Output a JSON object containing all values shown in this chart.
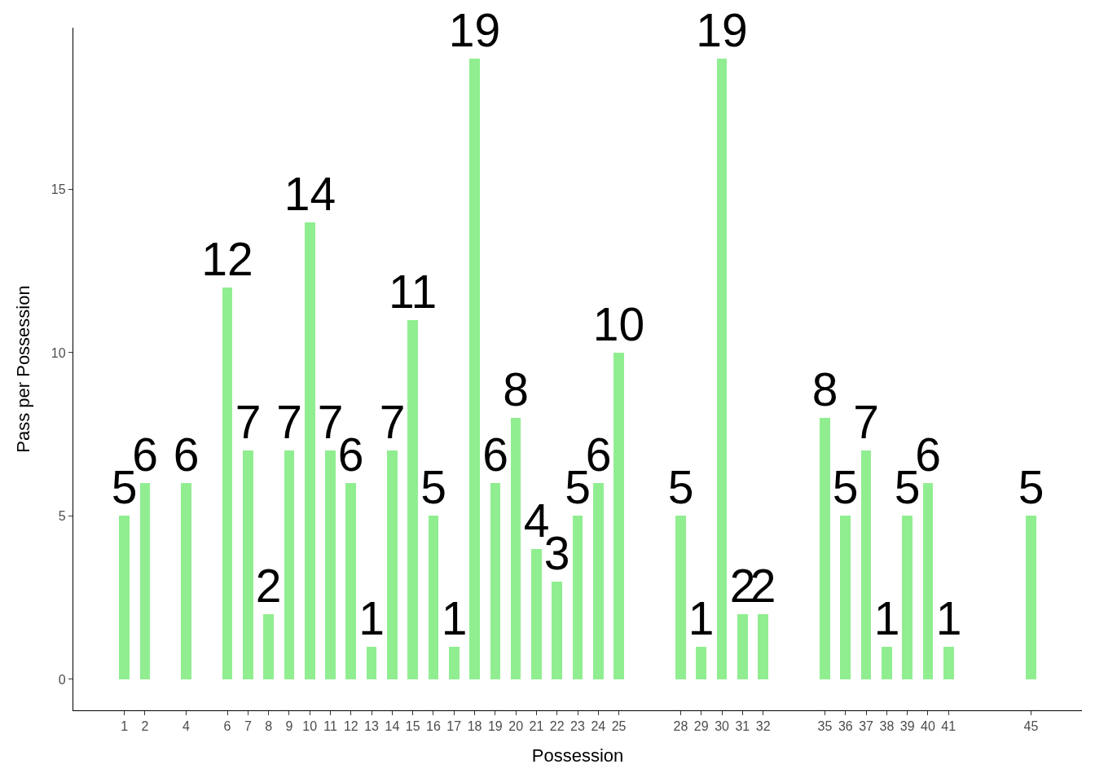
{
  "chart_data": {
    "type": "bar",
    "xlabel": "Possession",
    "ylabel": "Pass per Possession",
    "x": [
      1,
      2,
      4,
      6,
      7,
      8,
      9,
      10,
      11,
      12,
      13,
      14,
      15,
      16,
      17,
      18,
      19,
      20,
      21,
      22,
      23,
      24,
      25,
      28,
      29,
      30,
      31,
      32,
      35,
      36,
      37,
      38,
      39,
      40,
      41,
      45
    ],
    "values": [
      5,
      6,
      6,
      12,
      7,
      2,
      7,
      14,
      7,
      6,
      1,
      7,
      11,
      5,
      1,
      19,
      6,
      8,
      4,
      3,
      5,
      6,
      10,
      5,
      1,
      19,
      2,
      2,
      8,
      5,
      7,
      1,
      5,
      6,
      1,
      5
    ],
    "color": "#90ee90",
    "xlim": [
      -1.475,
      47.475
    ],
    "ylim": [
      -0.95,
      19.95
    ],
    "xticks": [
      1,
      2,
      4,
      6,
      7,
      8,
      9,
      10,
      11,
      12,
      13,
      14,
      15,
      16,
      17,
      18,
      19,
      20,
      21,
      22,
      23,
      24,
      25,
      28,
      29,
      30,
      31,
      32,
      35,
      36,
      37,
      38,
      39,
      40,
      41,
      45
    ],
    "yticks": [
      0,
      5,
      10,
      15
    ],
    "grid": false,
    "data_labels": true
  }
}
